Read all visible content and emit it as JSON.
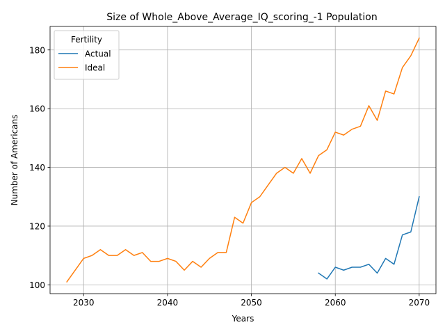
{
  "chart_data": {
    "type": "line",
    "title": "Size of Whole_Above_Average_IQ_scoring_-1 Population",
    "xlabel": "Years",
    "ylabel": "Number of Americans",
    "xlim": [
      2026,
      2072
    ],
    "ylim": [
      97,
      188
    ],
    "xticks": [
      2030,
      2040,
      2050,
      2060,
      2070
    ],
    "yticks": [
      100,
      120,
      140,
      160,
      180
    ],
    "grid": true,
    "legend": {
      "title": "Fertility",
      "placement": "top-left"
    },
    "series": [
      {
        "name": "Actual",
        "color": "#1f77b4",
        "x": [
          2058,
          2059,
          2060,
          2061,
          2062,
          2063,
          2064,
          2065,
          2066,
          2067,
          2068,
          2069,
          2070
        ],
        "y": [
          104,
          102,
          106,
          105,
          106,
          106,
          107,
          104,
          109,
          107,
          117,
          118,
          130
        ]
      },
      {
        "name": "Ideal",
        "color": "#ff7f0e",
        "x": [
          2028,
          2029,
          2030,
          2031,
          2032,
          2033,
          2034,
          2035,
          2036,
          2037,
          2038,
          2039,
          2040,
          2041,
          2042,
          2043,
          2044,
          2045,
          2046,
          2047,
          2048,
          2049,
          2050,
          2051,
          2052,
          2053,
          2054,
          2055,
          2056,
          2057,
          2058,
          2059,
          2060,
          2061,
          2062,
          2063,
          2064,
          2065,
          2066,
          2067,
          2068,
          2069,
          2070
        ],
        "y": [
          101,
          105,
          109,
          110,
          112,
          110,
          110,
          112,
          110,
          111,
          108,
          108,
          109,
          108,
          105,
          108,
          106,
          109,
          111,
          111,
          123,
          121,
          128,
          130,
          134,
          138,
          140,
          138,
          143,
          138,
          144,
          146,
          152,
          151,
          153,
          154,
          161,
          156,
          166,
          165,
          174,
          178,
          184
        ]
      }
    ]
  }
}
